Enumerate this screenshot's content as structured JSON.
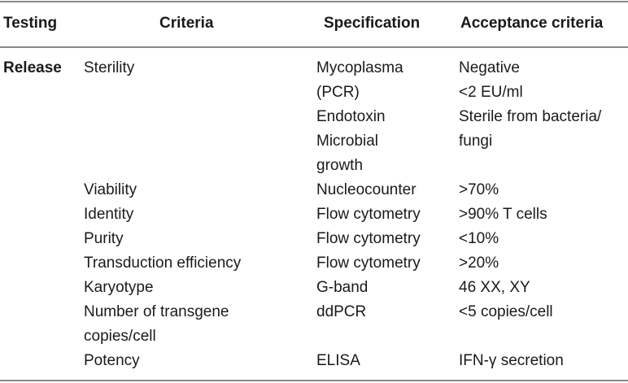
{
  "headers": {
    "testing": "Testing",
    "criteria": "Criteria",
    "specification": "Specification",
    "acceptance": "Acceptance criteria"
  },
  "testing_label": "Release",
  "criteria_col": [
    "Sterility",
    "Viability",
    "Identity",
    "Purity",
    "Transduction efficiency",
    "Karyotype",
    "Number of transgene",
    "copies/cell",
    "Potency"
  ],
  "specification_col": [
    "Mycoplasma",
    "(PCR)",
    "Endotoxin",
    "Microbial",
    "growth",
    "Nucleocounter",
    "Flow cytometry",
    "Flow cytometry",
    "Flow cytometry",
    "G-band",
    "ddPCR",
    "ELISA"
  ],
  "acceptance_col": [
    "Negative",
    "<2 EU/ml",
    "Sterile from bacteria/",
    "fungi",
    ">70%",
    ">90% T cells",
    "<10%",
    ">20%",
    "46 XX, XY",
    "<5 copies/cell",
    "IFN-γ secretion"
  ]
}
